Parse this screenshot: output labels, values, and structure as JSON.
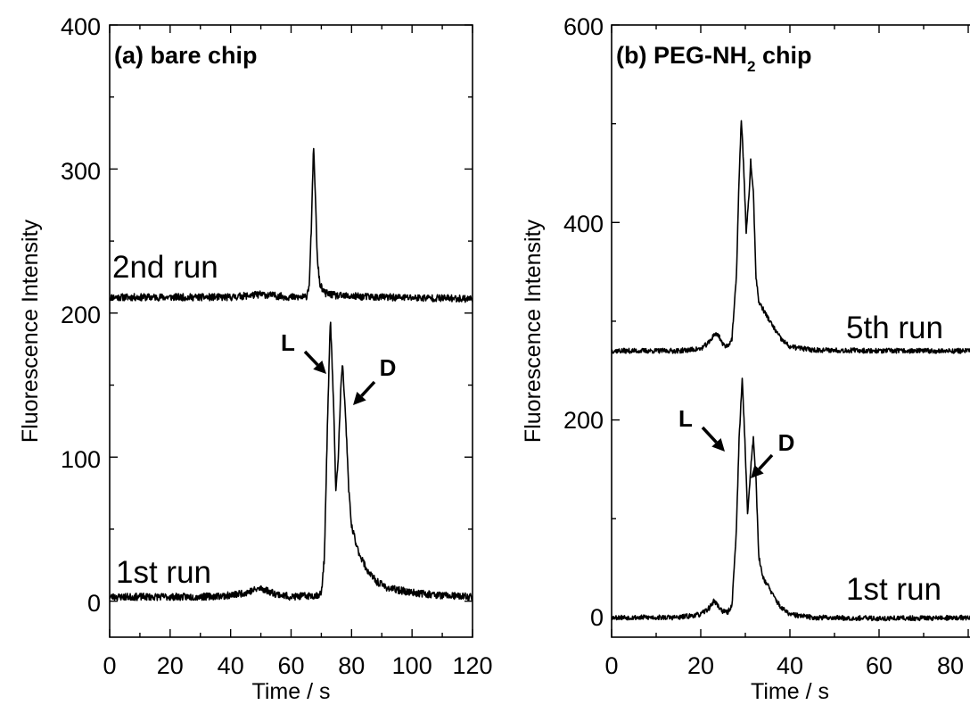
{
  "chart_data": [
    {
      "type": "line",
      "panel_label": "(a) bare chip",
      "xlabel": "Time / s",
      "ylabel": "Fluorescence Intensity",
      "xlim": [
        0,
        120
      ],
      "ylim": [
        -25,
        400
      ],
      "xticks": [
        0,
        20,
        40,
        60,
        80,
        100,
        120
      ],
      "yticks": [
        0,
        100,
        200,
        300,
        400
      ],
      "xticks_minor": [
        10,
        30,
        50,
        70,
        90,
        110
      ],
      "yticks_minor": [
        50,
        150,
        250,
        350
      ],
      "grid": false,
      "series": [
        {
          "name": "2nd run",
          "baseline": 211,
          "noise": 2.5,
          "points": [
            [
              0,
              211
            ],
            [
              20,
              211
            ],
            [
              40,
              211
            ],
            [
              50,
              213
            ],
            [
              60,
              211
            ],
            [
              65,
              211
            ],
            [
              66,
              220
            ],
            [
              66.8,
              265
            ],
            [
              67.4,
              316
            ],
            [
              68,
              285
            ],
            [
              68.6,
              240
            ],
            [
              69.5,
              220
            ],
            [
              71,
              214
            ],
            [
              75,
              212
            ],
            [
              90,
              211
            ],
            [
              120,
              210
            ]
          ]
        },
        {
          "name": "1st run",
          "baseline": 4,
          "noise": 2.5,
          "points": [
            [
              0,
              3
            ],
            [
              20,
              3
            ],
            [
              30,
              3
            ],
            [
              40,
              4
            ],
            [
              45,
              6
            ],
            [
              50,
              9
            ],
            [
              55,
              5
            ],
            [
              60,
              3
            ],
            [
              68,
              4
            ],
            [
              70,
              5
            ],
            [
              71,
              30
            ],
            [
              72,
              120
            ],
            [
              73,
              197
            ],
            [
              74,
              140
            ],
            [
              74.8,
              77
            ],
            [
              75.5,
              95
            ],
            [
              76.5,
              150
            ],
            [
              77,
              164
            ],
            [
              78,
              130
            ],
            [
              79,
              80
            ],
            [
              80,
              52
            ],
            [
              82,
              36
            ],
            [
              85,
              22
            ],
            [
              88,
              14
            ],
            [
              92,
              9
            ],
            [
              100,
              6
            ],
            [
              110,
              4
            ],
            [
              120,
              3
            ]
          ]
        }
      ],
      "annotations": [
        {
          "text": "L",
          "points_to": [
            72.9,
            180
          ]
        },
        {
          "text": "D",
          "points_to": [
            79.5,
            120
          ]
        }
      ]
    },
    {
      "type": "line",
      "panel_label": "(b) PEG-NH",
      "panel_label_sub": "2",
      "panel_label_suffix": " chip",
      "xlabel": "Time / s",
      "ylabel": "Fluorescence Intensity",
      "xlim": [
        0,
        90
      ],
      "ylim": [
        -20,
        600
      ],
      "xticks": [
        0,
        20,
        40,
        60,
        80
      ],
      "yticks": [
        0,
        200,
        400,
        600
      ],
      "xticks_minor": [
        10,
        30,
        50,
        70
      ],
      "yticks_minor": [
        100,
        300,
        500
      ],
      "grid": false,
      "series": [
        {
          "name": "5th run",
          "baseline": 271,
          "noise": 2.5,
          "points": [
            [
              0,
              270
            ],
            [
              15,
              270
            ],
            [
              20,
              272
            ],
            [
              22,
              279
            ],
            [
              23,
              287
            ],
            [
              24,
              286
            ],
            [
              25,
              276
            ],
            [
              26,
              275
            ],
            [
              27,
              282
            ],
            [
              28,
              345
            ],
            [
              28.5,
              430
            ],
            [
              29.1,
              505
            ],
            [
              29.6,
              460
            ],
            [
              30.2,
              390
            ],
            [
              30.8,
              425
            ],
            [
              31.2,
              462
            ],
            [
              31.8,
              430
            ],
            [
              32.4,
              345
            ],
            [
              33,
              320
            ],
            [
              34,
              312
            ],
            [
              35,
              304
            ],
            [
              36,
              296
            ],
            [
              38,
              282
            ],
            [
              40,
              274
            ],
            [
              45,
              271
            ],
            [
              60,
              270
            ],
            [
              90,
              270
            ]
          ]
        },
        {
          "name": "1st run",
          "baseline": 0,
          "noise": 2.5,
          "points": [
            [
              0,
              0
            ],
            [
              15,
              0
            ],
            [
              20,
              3
            ],
            [
              22,
              10
            ],
            [
              23,
              17
            ],
            [
              24,
              11
            ],
            [
              25,
              6
            ],
            [
              26,
              5
            ],
            [
              27,
              12
            ],
            [
              28,
              90
            ],
            [
              28.6,
              180
            ],
            [
              29.3,
              242
            ],
            [
              29.9,
              180
            ],
            [
              30.5,
              104
            ],
            [
              31.2,
              150
            ],
            [
              31.8,
              183
            ],
            [
              32.4,
              140
            ],
            [
              33,
              62
            ],
            [
              34,
              40
            ],
            [
              35,
              33
            ],
            [
              36,
              24
            ],
            [
              38,
              10
            ],
            [
              40,
              3
            ],
            [
              45,
              0
            ],
            [
              60,
              -1
            ],
            [
              90,
              0
            ]
          ]
        }
      ],
      "annotations": [
        {
          "text": "L",
          "points_to": [
            29.1,
            200
          ]
        },
        {
          "text": "D",
          "points_to": [
            33.0,
            155
          ]
        }
      ]
    }
  ]
}
